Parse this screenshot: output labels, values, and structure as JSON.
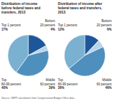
{
  "chart_data": [
    {
      "type": "pie",
      "title": "Distribution of income\nbefore federal taxes and\ntransfers, 2013",
      "categories": [
        "Top 1 percent",
        "Bottom\n20 percent",
        "Middle\n60 percent",
        "Top\n80-99 percent"
      ],
      "values": [
        17,
        4,
        39,
        40
      ],
      "value_labels": [
        "17%",
        "4%",
        "39%",
        "40%"
      ],
      "data_labels": true,
      "colors": [
        "#1e5799",
        "#b8d4e8",
        "#4e8fbd",
        "#7ab0d0"
      ],
      "annotations": [
        "Source: CBPP calculations from Congressional Budget Office data."
      ]
    },
    {
      "type": "pie",
      "title": "Distribution of income after\nfederal taxes and transfers,\n2013",
      "categories": [
        "Top 1 percent",
        "Bottom\n20 percent",
        "Middle\n60 percent",
        "Top\n80-99 percent"
      ],
      "values": [
        12,
        6,
        46,
        36
      ],
      "value_labels": [
        "12%",
        "6%",
        "46%",
        "36%"
      ],
      "data_labels": true,
      "colors": [
        "#1e5799",
        "#b8d4e8",
        "#4e8fbd",
        "#7ab0d0"
      ]
    }
  ]
}
